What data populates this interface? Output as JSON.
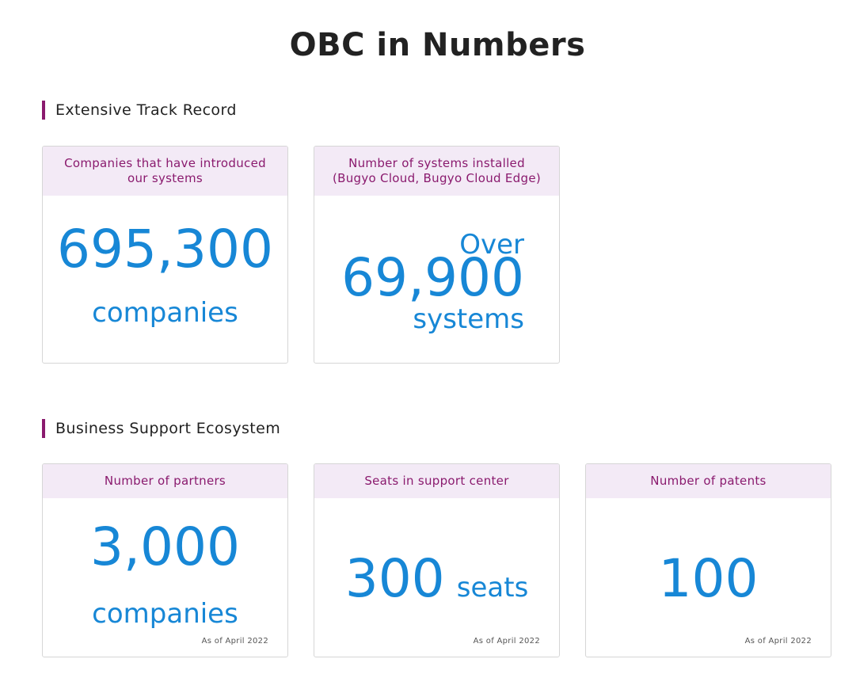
{
  "page": {
    "title": "OBC in Numbers"
  },
  "sections": {
    "track_record": {
      "heading": "Extensive Track Record",
      "cards": {
        "companies": {
          "header_line1": "Companies that have introduced",
          "header_line2": "our systems",
          "value": "695,300",
          "unit": "companies"
        },
        "systems": {
          "header_line1": "Number of systems installed",
          "header_line2": "(Bugyo Cloud, Bugyo Cloud Edge)",
          "prefix": "Over",
          "value": "69,900",
          "unit": "systems"
        }
      }
    },
    "ecosystem": {
      "heading": "Business Support Ecosystem",
      "cards": {
        "partners": {
          "header": "Number of partners",
          "value": "3,000",
          "unit": "companies",
          "note": "As of April 2022"
        },
        "seats": {
          "header": "Seats in support center",
          "value": "300",
          "unit": "seats",
          "note": "As of April 2022"
        },
        "patents": {
          "header": "Number of patents",
          "value": "100",
          "note": "As of April 2022"
        }
      }
    }
  },
  "colors": {
    "accent_purple": "#8a1a6e",
    "header_bg": "#f3eaf6",
    "number_blue": "#1787d6"
  }
}
